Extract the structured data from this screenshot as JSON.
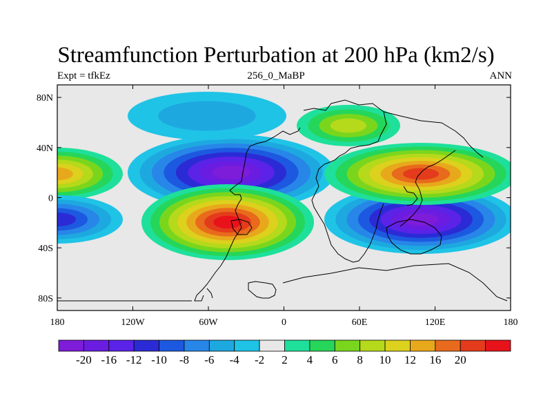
{
  "title": "Streamfunction Perturbation at 200 hPa (km2/s)",
  "left_label": "Expt = tfkEz",
  "center_label": "256_0_MaBP",
  "right_label": "ANN",
  "chart_data": {
    "type": "contour-map",
    "projection": "cylindrical-equidistant",
    "lon_range": [
      -180,
      180
    ],
    "lat_range": [
      -90,
      90
    ],
    "x_ticks": [
      {
        "value": -180,
        "label": "180"
      },
      {
        "value": -120,
        "label": "120W"
      },
      {
        "value": -60,
        "label": "60W"
      },
      {
        "value": 0,
        "label": "0"
      },
      {
        "value": 60,
        "label": "60E"
      },
      {
        "value": 120,
        "label": "120E"
      },
      {
        "value": 180,
        "label": "180"
      }
    ],
    "y_ticks": [
      {
        "value": 80,
        "label": "80N"
      },
      {
        "value": 40,
        "label": "40N"
      },
      {
        "value": 0,
        "label": "0"
      },
      {
        "value": -40,
        "label": "40S"
      },
      {
        "value": -80,
        "label": "80S"
      }
    ],
    "colorbar": {
      "colors": [
        "#7d1cd9",
        "#6a1de0",
        "#5b22e8",
        "#2b2bd6",
        "#1d59e0",
        "#2886e8",
        "#1ea8e0",
        "#1fc3e6",
        "#e8e8e8",
        "#1ee09a",
        "#25d65a",
        "#7ad61d",
        "#b5d91b",
        "#dcd11d",
        "#e8a81c",
        "#e86a1c",
        "#e33b1c",
        "#e8121a"
      ],
      "labels": [
        "-20",
        "-16",
        "-12",
        "-10",
        "-8",
        "-6",
        "-4",
        "-2",
        "2",
        "4",
        "6",
        "8",
        "10",
        "12",
        "16",
        "20"
      ]
    },
    "features": [
      {
        "name": "negative center north Atlantic",
        "lon": -30,
        "lat": 22,
        "value": -22
      },
      {
        "name": "negative center south Indian Ocean",
        "lon": 110,
        "lat": -20,
        "value": -20
      },
      {
        "name": "positive center south Atlantic",
        "lon": -30,
        "lat": -20,
        "value": 22
      },
      {
        "name": "positive center north Indian/Pacific",
        "lon": 115,
        "lat": 25,
        "value": 20
      },
      {
        "name": "positive lobe date line north",
        "lon": -180,
        "lat": 20,
        "value": 12
      },
      {
        "name": "negative lobe date line south",
        "lon": -180,
        "lat": -15,
        "value": -10
      },
      {
        "name": "positive high latitude Eurasia",
        "lon": 50,
        "lat": 62,
        "value": 8
      },
      {
        "name": "negative north Pacific",
        "lon": -75,
        "lat": 62,
        "value": -5
      }
    ]
  }
}
